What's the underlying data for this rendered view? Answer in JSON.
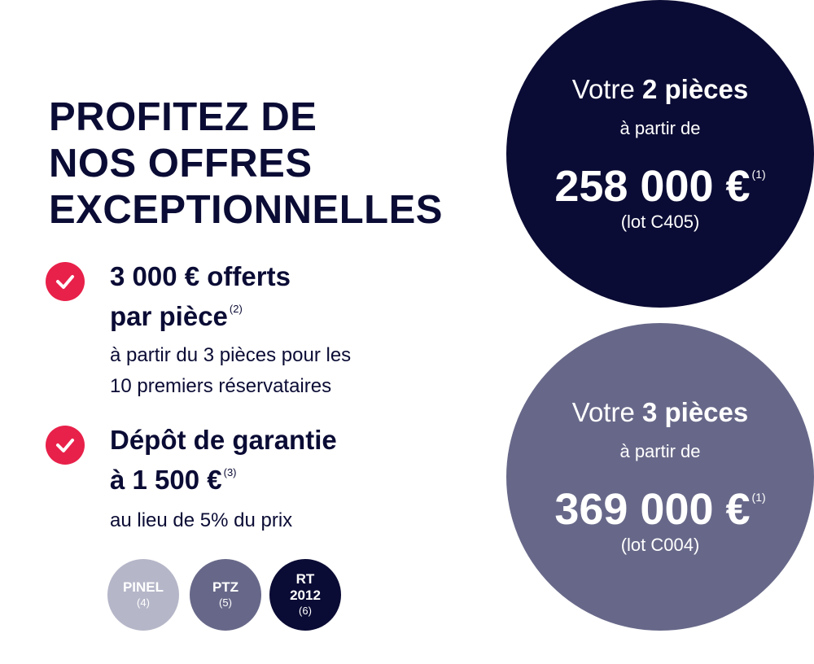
{
  "headline": {
    "lines": [
      "PROFITEZ DE",
      "NOS OFFRES",
      "EXCEPTIONNELLES"
    ]
  },
  "offers": [
    {
      "icon": "check-icon",
      "title_lines": [
        "3 000 € offerts",
        "par pièce"
      ],
      "ref": "(2)",
      "desc_lines": [
        "à partir du 3 pièces pour les",
        "10 premiers réservataires"
      ]
    },
    {
      "icon": "check-icon",
      "title_lines": [
        "Dépôt de garantie",
        "à 1 500 €"
      ],
      "ref": "(3)",
      "desc_lines": [
        "au lieu de 5% du prix"
      ]
    }
  ],
  "badges": [
    {
      "name": "PINEL",
      "ref": "(4)",
      "color": "#b5b6c8"
    },
    {
      "name": "PTZ",
      "ref": "(5)",
      "color": "#676889"
    },
    {
      "name_lines": [
        "RT",
        "2012"
      ],
      "ref": "(6)",
      "color": "#0b0c35"
    }
  ],
  "prices": [
    {
      "prefix": "Votre",
      "type": "2 pièces",
      "from": "à partir de",
      "amount": "258 000 €",
      "ref": "(1)",
      "lot": "(lot C405)",
      "color": "#0b0c35"
    },
    {
      "prefix": "Votre",
      "type": "3 pièces",
      "from": "à partir de",
      "amount": "369 000 €",
      "ref": "(1)",
      "lot": "(lot C004)",
      "color": "#676889"
    }
  ],
  "colors": {
    "navy": "#0b0c35",
    "accent_red": "#e8214a",
    "slate": "#676889",
    "light_grey": "#b5b6c8"
  }
}
